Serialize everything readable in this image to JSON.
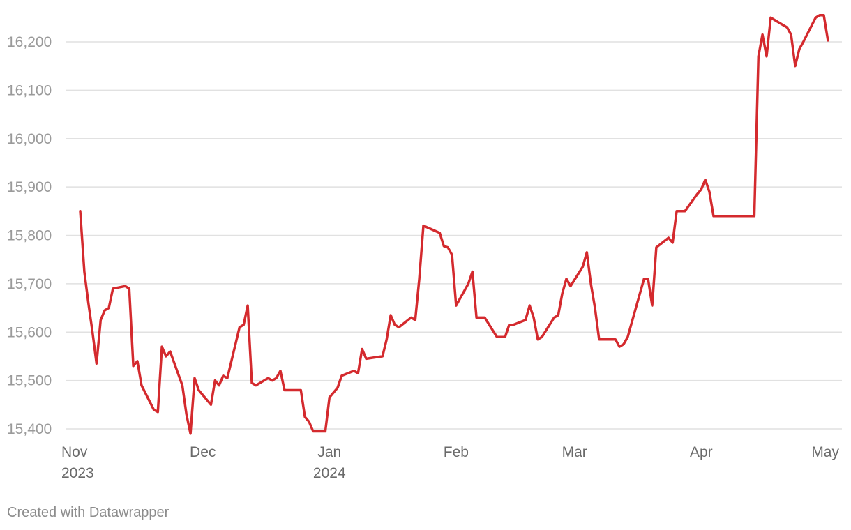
{
  "chart_data": {
    "type": "line",
    "title": "",
    "xlabel": "",
    "ylabel": "",
    "ylim": [
      15400,
      16200
    ],
    "yticks": [
      {
        "value": 16200,
        "label": "16,200"
      },
      {
        "value": 16100,
        "label": "16,100"
      },
      {
        "value": 16000,
        "label": "16,000"
      },
      {
        "value": 15900,
        "label": "15,900"
      },
      {
        "value": 15800,
        "label": "15,800"
      },
      {
        "value": 15700,
        "label": "15,700"
      },
      {
        "value": 15600,
        "label": "15,600"
      },
      {
        "value": 15500,
        "label": "15,500"
      },
      {
        "value": 15400,
        "label": "15,400"
      }
    ],
    "xlim": [
      "2023-11-01",
      "2024-05-01"
    ],
    "xticks": [
      {
        "date": "2023-11-01",
        "label": "Nov",
        "label2": "2023"
      },
      {
        "date": "2023-12-01",
        "label": "Dec",
        "label2": ""
      },
      {
        "date": "2024-01-01",
        "label": "Jan",
        "label2": "2024"
      },
      {
        "date": "2024-02-01",
        "label": "Feb",
        "label2": ""
      },
      {
        "date": "2024-03-01",
        "label": "Mar",
        "label2": ""
      },
      {
        "date": "2024-04-01",
        "label": "Apr",
        "label2": ""
      },
      {
        "date": "2024-05-01",
        "label": "May",
        "label2": ""
      }
    ],
    "grid": true,
    "line_color": "#d42a2e",
    "series": [
      {
        "points": [
          [
            "2023-11-01",
            15850
          ],
          [
            "2023-11-02",
            15725
          ],
          [
            "2023-11-03",
            15660
          ],
          [
            "2023-11-04",
            15600
          ],
          [
            "2023-11-05",
            15535
          ],
          [
            "2023-11-06",
            15625
          ],
          [
            "2023-11-07",
            15645
          ],
          [
            "2023-11-08",
            15650
          ],
          [
            "2023-11-09",
            15690
          ],
          [
            "2023-11-12",
            15695
          ],
          [
            "2023-11-13",
            15690
          ],
          [
            "2023-11-14",
            15530
          ],
          [
            "2023-11-15",
            15540
          ],
          [
            "2023-11-16",
            15490
          ],
          [
            "2023-11-19",
            15440
          ],
          [
            "2023-11-20",
            15435
          ],
          [
            "2023-11-21",
            15570
          ],
          [
            "2023-11-22",
            15550
          ],
          [
            "2023-11-23",
            15560
          ],
          [
            "2023-11-26",
            15490
          ],
          [
            "2023-11-27",
            15430
          ],
          [
            "2023-11-28",
            15390
          ],
          [
            "2023-11-29",
            15505
          ],
          [
            "2023-11-30",
            15480
          ],
          [
            "2023-12-03",
            15450
          ],
          [
            "2023-12-04",
            15500
          ],
          [
            "2023-12-05",
            15490
          ],
          [
            "2023-12-06",
            15510
          ],
          [
            "2023-12-07",
            15505
          ],
          [
            "2023-12-10",
            15610
          ],
          [
            "2023-12-11",
            15615
          ],
          [
            "2023-12-12",
            15655
          ],
          [
            "2023-12-13",
            15495
          ],
          [
            "2023-12-14",
            15490
          ],
          [
            "2023-12-17",
            15505
          ],
          [
            "2023-12-18",
            15500
          ],
          [
            "2023-12-19",
            15505
          ],
          [
            "2023-12-20",
            15520
          ],
          [
            "2023-12-21",
            15480
          ],
          [
            "2023-12-25",
            15480
          ],
          [
            "2023-12-26",
            15425
          ],
          [
            "2023-12-27",
            15415
          ],
          [
            "2023-12-28",
            15395
          ],
          [
            "2023-12-31",
            15395
          ],
          [
            "2024-01-01",
            15465
          ],
          [
            "2024-01-03",
            15485
          ],
          [
            "2024-01-04",
            15510
          ],
          [
            "2024-01-07",
            15520
          ],
          [
            "2024-01-08",
            15515
          ],
          [
            "2024-01-09",
            15565
          ],
          [
            "2024-01-10",
            15545
          ],
          [
            "2024-01-14",
            15550
          ],
          [
            "2024-01-15",
            15585
          ],
          [
            "2024-01-16",
            15635
          ],
          [
            "2024-01-17",
            15615
          ],
          [
            "2024-01-18",
            15610
          ],
          [
            "2024-01-21",
            15630
          ],
          [
            "2024-01-22",
            15625
          ],
          [
            "2024-01-23",
            15710
          ],
          [
            "2024-01-24",
            15820
          ],
          [
            "2024-01-28",
            15805
          ],
          [
            "2024-01-29",
            15778
          ],
          [
            "2024-01-30",
            15775
          ],
          [
            "2024-01-31",
            15760
          ],
          [
            "2024-02-01",
            15655
          ],
          [
            "2024-02-04",
            15700
          ],
          [
            "2024-02-05",
            15725
          ],
          [
            "2024-02-06",
            15630
          ],
          [
            "2024-02-08",
            15630
          ],
          [
            "2024-02-11",
            15590
          ],
          [
            "2024-02-13",
            15590
          ],
          [
            "2024-02-14",
            15615
          ],
          [
            "2024-02-15",
            15615
          ],
          [
            "2024-02-18",
            15625
          ],
          [
            "2024-02-19",
            15655
          ],
          [
            "2024-02-20",
            15630
          ],
          [
            "2024-02-21",
            15585
          ],
          [
            "2024-02-22",
            15590
          ],
          [
            "2024-02-25",
            15630
          ],
          [
            "2024-02-26",
            15635
          ],
          [
            "2024-02-27",
            15680
          ],
          [
            "2024-02-28",
            15710
          ],
          [
            "2024-02-29",
            15695
          ],
          [
            "2024-03-03",
            15735
          ],
          [
            "2024-03-04",
            15765
          ],
          [
            "2024-03-05",
            15700
          ],
          [
            "2024-03-06",
            15650
          ],
          [
            "2024-03-07",
            15585
          ],
          [
            "2024-03-11",
            15585
          ],
          [
            "2024-03-12",
            15570
          ],
          [
            "2024-03-13",
            15575
          ],
          [
            "2024-03-14",
            15590
          ],
          [
            "2024-03-17",
            15680
          ],
          [
            "2024-03-18",
            15710
          ],
          [
            "2024-03-19",
            15710
          ],
          [
            "2024-03-20",
            15655
          ],
          [
            "2024-03-21",
            15775
          ],
          [
            "2024-03-24",
            15795
          ],
          [
            "2024-03-25",
            15785
          ],
          [
            "2024-03-26",
            15850
          ],
          [
            "2024-03-28",
            15850
          ],
          [
            "2024-03-31",
            15885
          ],
          [
            "2024-04-01",
            15895
          ],
          [
            "2024-04-02",
            15915
          ],
          [
            "2024-04-03",
            15890
          ],
          [
            "2024-04-04",
            15840
          ],
          [
            "2024-04-14",
            15840
          ],
          [
            "2024-04-15",
            16170
          ],
          [
            "2024-04-16",
            16215
          ],
          [
            "2024-04-17",
            16170
          ],
          [
            "2024-04-18",
            16250
          ],
          [
            "2024-04-21",
            16235
          ],
          [
            "2024-04-22",
            16230
          ],
          [
            "2024-04-23",
            16215
          ],
          [
            "2024-04-24",
            16150
          ],
          [
            "2024-04-25",
            16185
          ],
          [
            "2024-04-26",
            16200
          ],
          [
            "2024-04-29",
            16250
          ],
          [
            "2024-04-30",
            16255
          ],
          [
            "2024-05-01",
            16255
          ],
          [
            "2024-05-02",
            16203
          ]
        ]
      }
    ]
  },
  "footer": {
    "credit": "Created with Datawrapper"
  }
}
